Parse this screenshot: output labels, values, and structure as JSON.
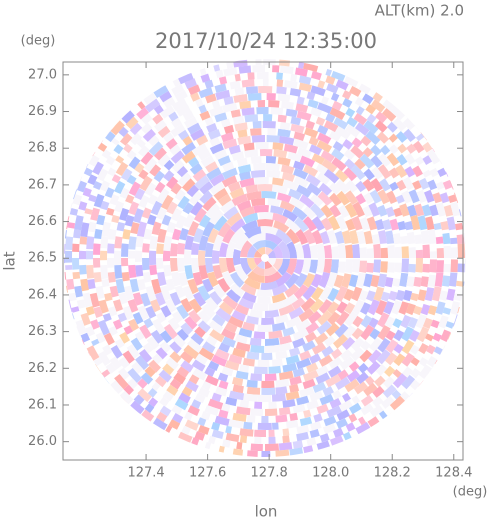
{
  "chart_data": {
    "type": "radar-field",
    "title": "2017/10/24 12:35:00",
    "altitude_label": "ALT(km) 2.0",
    "y_unit": "(deg)",
    "x_unit": "(deg)",
    "ylabel": "lat",
    "xlabel": "lon",
    "xlim": [
      127.13,
      128.43
    ],
    "ylim": [
      25.95,
      27.035
    ],
    "xticks": [
      127.4,
      127.6,
      127.8,
      {
        "value": 128.0,
        "label": "128.0"
      },
      128.2,
      128.4
    ],
    "yticks": [
      {
        "value": 26.0,
        "label": "26.0"
      },
      26.1,
      26.2,
      26.3,
      26.4,
      26.5,
      26.6,
      26.7,
      26.8,
      26.9,
      {
        "value": 27.0,
        "label": "27.0"
      }
    ]
  }
}
